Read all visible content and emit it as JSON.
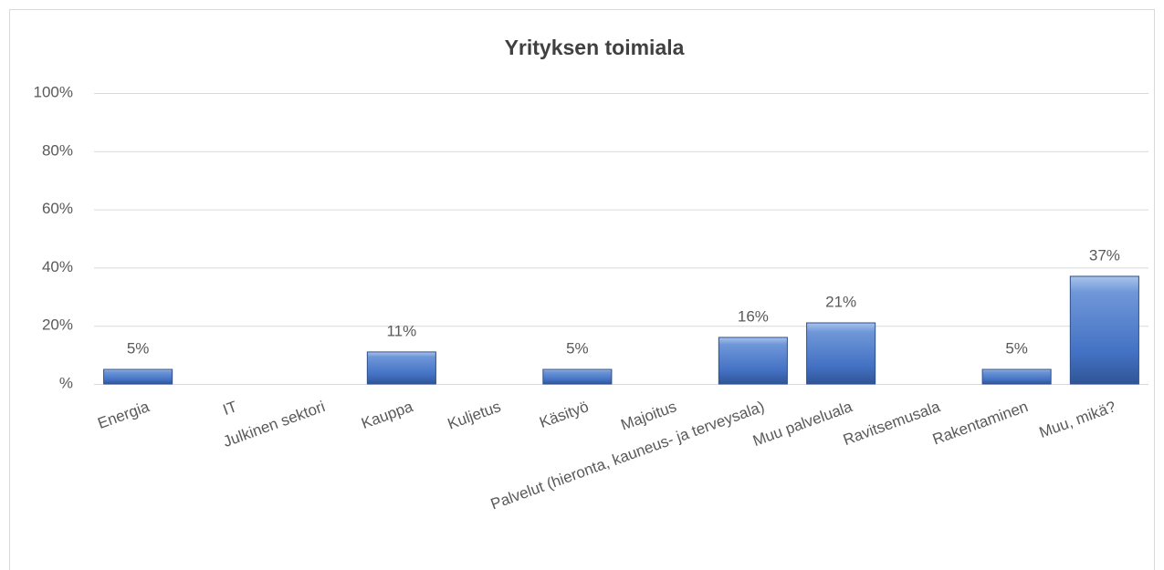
{
  "chart_data": {
    "type": "bar",
    "title": "Yrityksen toimiala",
    "categories": [
      "Energia",
      "IT",
      "Julkinen sektori",
      "Kauppa",
      "Kuljetus",
      "Käsityö",
      "Majoitus",
      "Palvelut (hieronta, kauneus- ja terveysala)",
      "Muu palveluala",
      "Ravitsemusala",
      "Rakentaminen",
      "Muu, mikä?"
    ],
    "values": [
      5,
      null,
      null,
      11,
      null,
      5,
      null,
      16,
      21,
      null,
      5,
      37
    ],
    "value_labels": [
      "5%",
      null,
      null,
      "11%",
      null,
      "5%",
      null,
      "16%",
      "21%",
      null,
      "5%",
      "37%"
    ],
    "color": "#4472c4",
    "ylim": [
      0,
      100
    ],
    "yticks": [
      {
        "value": 0,
        "label": "%"
      },
      {
        "value": 20,
        "label": "20%"
      },
      {
        "value": 40,
        "label": "40%"
      },
      {
        "value": 60,
        "label": "60%"
      },
      {
        "value": 80,
        "label": "80%"
      },
      {
        "value": 100,
        "label": "100%"
      }
    ],
    "grid": true
  }
}
